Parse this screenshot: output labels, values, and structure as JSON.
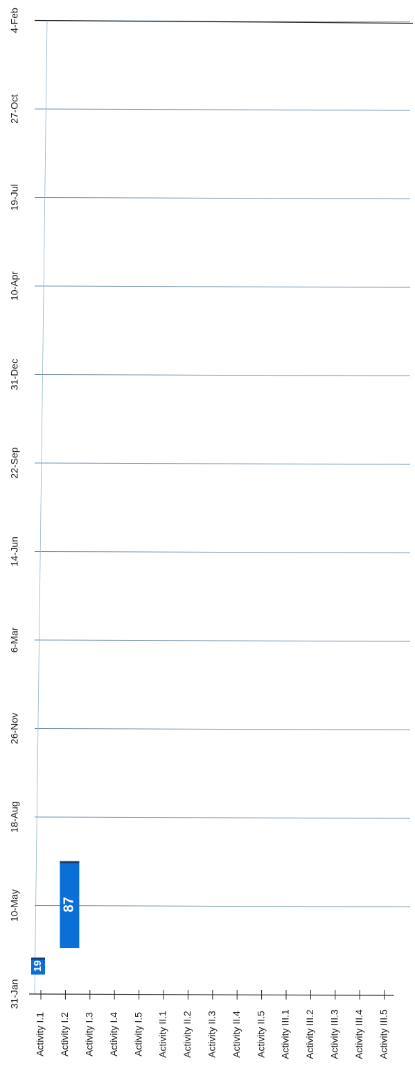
{
  "chart_data": {
    "type": "bar",
    "orientation": "horizontal-gantt",
    "rotated": "page rotated 90 degrees clockwise",
    "categories": [
      "Activity I.1",
      "Activity I.2",
      "Activity I.3",
      "Activity I.4",
      "Activity I.5",
      "Activity II.1",
      "Activity II.2",
      "Activity II.3",
      "Activity II.4",
      "Activity II.5",
      "Activity III.1",
      "Activity III.2",
      "Activity III.3",
      "Activity III.4",
      "Activity III.5"
    ],
    "time_ticks": [
      "31-Jan",
      "10-May",
      "18-Aug",
      "26-Nov",
      "6-Mar",
      "14-Jun",
      "22-Sep",
      "31-Dec",
      "10-Apr",
      "19-Jul",
      "27-Oct",
      "4-Feb"
    ],
    "bars": [
      {
        "category": "Activity I.1",
        "start": "31-Jan",
        "duration_days": 19,
        "label": "19"
      },
      {
        "category": "Activity I.2",
        "start": "31-Jan",
        "duration_days": 87,
        "label": "87"
      }
    ],
    "tick_interval_days": 99,
    "bar_color": "#0a6fd6",
    "bar_dark": "#1a3c6e",
    "grid": true
  }
}
